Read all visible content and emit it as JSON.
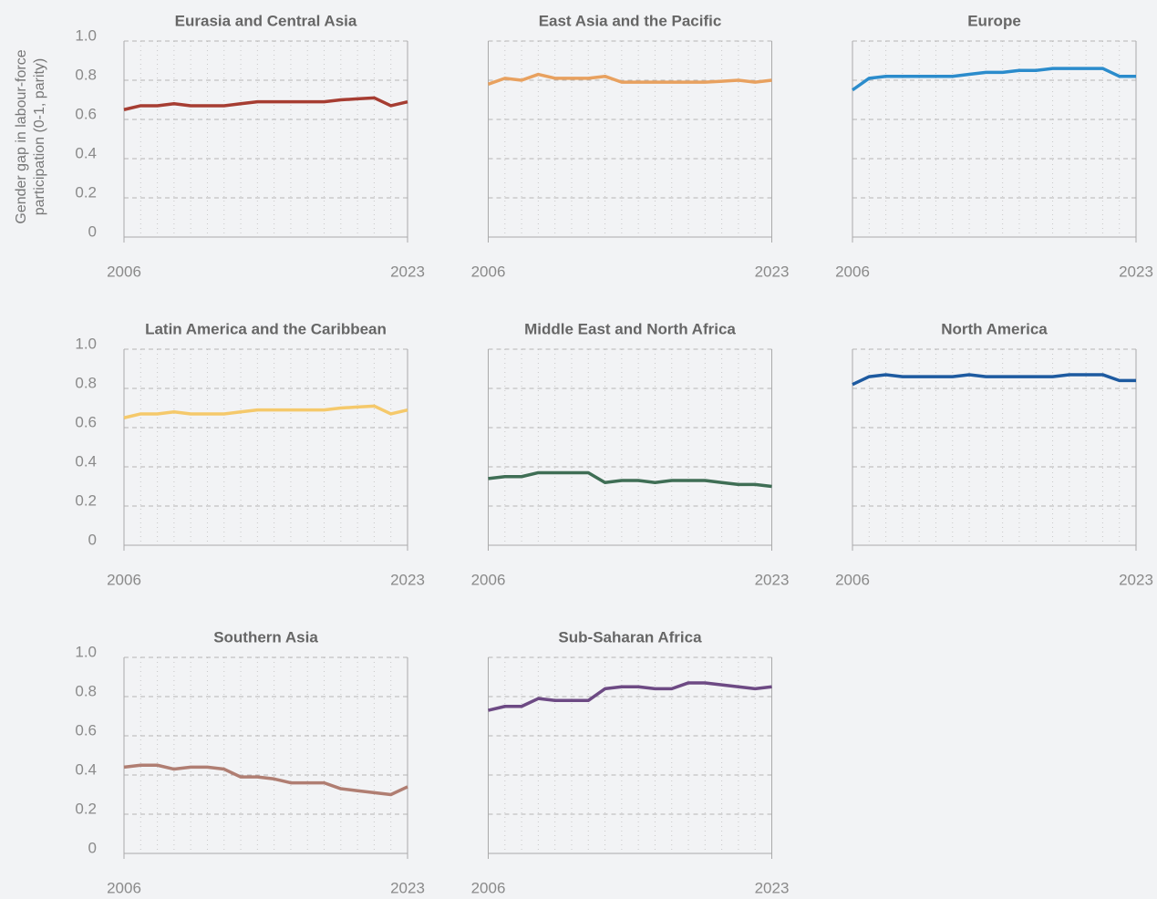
{
  "chart_data": [
    {
      "type": "line",
      "title": "Eurasia and Central Asia",
      "ylabel": "Gender gap in labour-force participation (0-1, parity)",
      "color": "#a63d32",
      "x": [
        2006,
        2007,
        2008,
        2009,
        2010,
        2011,
        2012,
        2013,
        2014,
        2015,
        2016,
        2017,
        2018,
        2019,
        2020,
        2021,
        2022,
        2023
      ],
      "values": [
        0.65,
        0.67,
        0.67,
        0.68,
        0.67,
        0.67,
        0.67,
        0.68,
        0.69,
        0.69,
        0.69,
        0.69,
        0.69,
        0.7,
        0.705,
        0.71,
        0.67,
        0.69
      ],
      "xlim": [
        2006,
        2023
      ],
      "xticks": [
        2006,
        2023
      ],
      "ylim": [
        0,
        1
      ],
      "yticks": [
        0,
        0.2,
        0.4,
        0.6,
        0.8,
        {
          "value": 1,
          "label": "1.0"
        }
      ],
      "grid": true
    },
    {
      "type": "line",
      "title": "East Asia and the Pacific",
      "color": "#e8a15f",
      "x": [
        2006,
        2007,
        2008,
        2009,
        2010,
        2011,
        2012,
        2013,
        2014,
        2015,
        2016,
        2017,
        2018,
        2019,
        2020,
        2021,
        2022,
        2023
      ],
      "values": [
        0.78,
        0.81,
        0.8,
        0.83,
        0.81,
        0.81,
        0.81,
        0.82,
        0.79,
        0.79,
        0.79,
        0.79,
        0.79,
        0.79,
        0.795,
        0.8,
        0.79,
        0.8
      ],
      "xlim": [
        2006,
        2023
      ],
      "xticks": [
        2006,
        2023
      ],
      "ylim": [
        0,
        1
      ],
      "yticks": [
        0,
        0.2,
        0.4,
        0.6,
        0.8,
        1
      ],
      "grid": true
    },
    {
      "type": "line",
      "title": "Europe",
      "color": "#2b8ccc",
      "x": [
        2006,
        2007,
        2008,
        2009,
        2010,
        2011,
        2012,
        2013,
        2014,
        2015,
        2016,
        2017,
        2018,
        2019,
        2020,
        2021,
        2022,
        2023
      ],
      "values": [
        0.75,
        0.81,
        0.82,
        0.82,
        0.82,
        0.82,
        0.82,
        0.83,
        0.84,
        0.84,
        0.85,
        0.85,
        0.86,
        0.86,
        0.86,
        0.86,
        0.82,
        0.82
      ],
      "xlim": [
        2006,
        2023
      ],
      "xticks": [
        2006,
        2023
      ],
      "ylim": [
        0,
        1
      ],
      "yticks": [
        0,
        0.2,
        0.4,
        0.6,
        0.8,
        1
      ],
      "grid": true
    },
    {
      "type": "line",
      "title": "Latin America and the Caribbean",
      "color": "#f5c96b",
      "x": [
        2006,
        2007,
        2008,
        2009,
        2010,
        2011,
        2012,
        2013,
        2014,
        2015,
        2016,
        2017,
        2018,
        2019,
        2020,
        2021,
        2022,
        2023
      ],
      "values": [
        0.65,
        0.67,
        0.67,
        0.68,
        0.67,
        0.67,
        0.67,
        0.68,
        0.69,
        0.69,
        0.69,
        0.69,
        0.69,
        0.7,
        0.705,
        0.71,
        0.67,
        0.69
      ],
      "xlim": [
        2006,
        2023
      ],
      "xticks": [
        2006,
        2023
      ],
      "ylim": [
        0,
        1
      ],
      "yticks": [
        0,
        0.2,
        0.4,
        0.6,
        0.8,
        {
          "value": 1,
          "label": "1.0"
        }
      ],
      "grid": true
    },
    {
      "type": "line",
      "title": "Middle East and North Africa",
      "color": "#3f6e55",
      "x": [
        2006,
        2007,
        2008,
        2009,
        2010,
        2011,
        2012,
        2013,
        2014,
        2015,
        2016,
        2017,
        2018,
        2019,
        2020,
        2021,
        2022,
        2023
      ],
      "values": [
        0.34,
        0.35,
        0.35,
        0.37,
        0.37,
        0.37,
        0.37,
        0.32,
        0.33,
        0.33,
        0.32,
        0.33,
        0.33,
        0.33,
        0.32,
        0.31,
        0.31,
        0.3
      ],
      "xlim": [
        2006,
        2023
      ],
      "xticks": [
        2006,
        2023
      ],
      "ylim": [
        0,
        1
      ],
      "yticks": [
        0,
        0.2,
        0.4,
        0.6,
        0.8,
        1
      ],
      "grid": true
    },
    {
      "type": "line",
      "title": "North America",
      "color": "#1d5aa0",
      "x": [
        2006,
        2007,
        2008,
        2009,
        2010,
        2011,
        2012,
        2013,
        2014,
        2015,
        2016,
        2017,
        2018,
        2019,
        2020,
        2021,
        2022,
        2023
      ],
      "values": [
        0.82,
        0.86,
        0.87,
        0.86,
        0.86,
        0.86,
        0.86,
        0.87,
        0.86,
        0.86,
        0.86,
        0.86,
        0.86,
        0.87,
        0.87,
        0.87,
        0.84,
        0.84
      ],
      "xlim": [
        2006,
        2023
      ],
      "xticks": [
        2006,
        2023
      ],
      "ylim": [
        0,
        1
      ],
      "yticks": [
        0,
        0.2,
        0.4,
        0.6,
        0.8,
        1
      ],
      "grid": true
    },
    {
      "type": "line",
      "title": "Southern Asia",
      "color": "#b07e72",
      "x": [
        2006,
        2007,
        2008,
        2009,
        2010,
        2011,
        2012,
        2013,
        2014,
        2015,
        2016,
        2017,
        2018,
        2019,
        2020,
        2021,
        2022,
        2023
      ],
      "values": [
        0.44,
        0.45,
        0.45,
        0.43,
        0.44,
        0.44,
        0.43,
        0.39,
        0.39,
        0.38,
        0.36,
        0.36,
        0.36,
        0.33,
        0.32,
        0.31,
        0.3,
        0.34
      ],
      "xlim": [
        2006,
        2023
      ],
      "xticks": [
        2006,
        2023
      ],
      "ylim": [
        0,
        1
      ],
      "yticks": [
        0,
        0.2,
        0.4,
        0.6,
        0.8,
        {
          "value": 1,
          "label": "1.0"
        }
      ],
      "grid": true
    },
    {
      "type": "line",
      "title": "Sub-Saharan Africa",
      "color": "#6d4a84",
      "x": [
        2006,
        2007,
        2008,
        2009,
        2010,
        2011,
        2012,
        2013,
        2014,
        2015,
        2016,
        2017,
        2018,
        2019,
        2020,
        2021,
        2022,
        2023
      ],
      "values": [
        0.73,
        0.75,
        0.75,
        0.79,
        0.78,
        0.78,
        0.78,
        0.84,
        0.85,
        0.85,
        0.84,
        0.84,
        0.87,
        0.87,
        0.86,
        0.85,
        0.84,
        0.85
      ],
      "xlim": [
        2006,
        2023
      ],
      "xticks": [
        2006,
        2023
      ],
      "ylim": [
        0,
        1
      ],
      "yticks": [
        0,
        0.2,
        0.4,
        0.6,
        0.8,
        1
      ],
      "grid": true
    }
  ]
}
